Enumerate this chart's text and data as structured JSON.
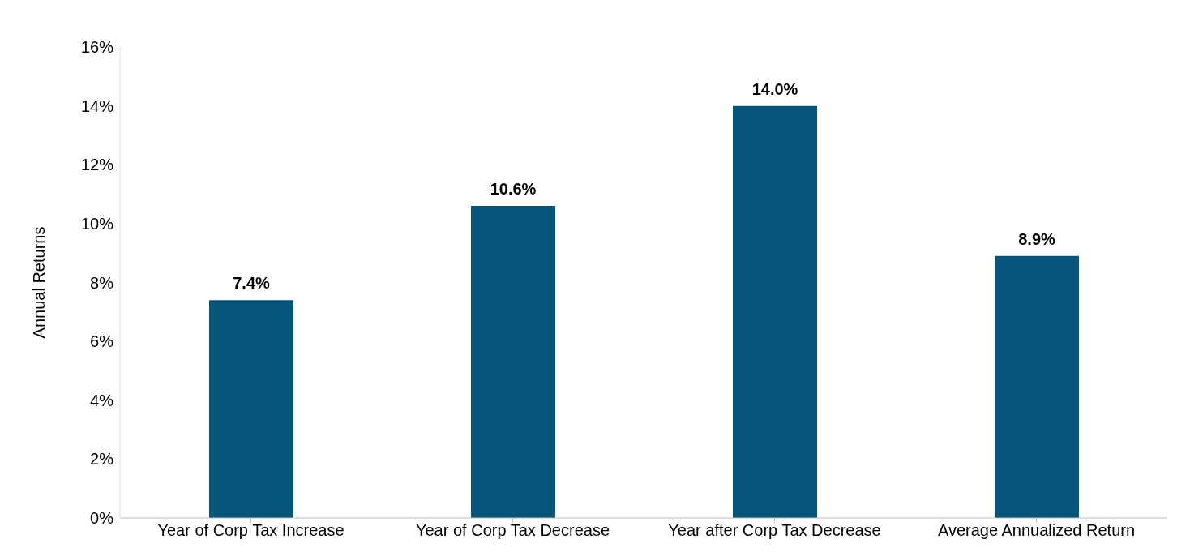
{
  "chart_data": {
    "type": "bar",
    "ylabel": "Annual Returns",
    "categories": [
      "Year of Corp Tax Increase",
      "Year of Corp Tax Decrease",
      "Year after Corp Tax Decrease",
      "Average Annualized Return"
    ],
    "series": [
      {
        "color": "#06557a",
        "values": [
          7.4,
          10.6,
          14.0,
          8.9
        ],
        "value_labels": [
          "7.4%",
          "10.6%",
          "14.0%",
          "8.9%"
        ]
      }
    ],
    "ylim": [
      0,
      16
    ],
    "yticks": [
      {
        "value": 0,
        "label": "0%"
      },
      {
        "value": 2,
        "label": "2%"
      },
      {
        "value": 4,
        "label": "4%"
      },
      {
        "value": 6,
        "label": "6%"
      },
      {
        "value": 8,
        "label": "8%"
      },
      {
        "value": 10,
        "label": "10%"
      },
      {
        "value": 12,
        "label": "12%"
      },
      {
        "value": 14,
        "label": "14%"
      },
      {
        "value": 16,
        "label": "16%"
      }
    ],
    "grid": false,
    "legend": false
  }
}
